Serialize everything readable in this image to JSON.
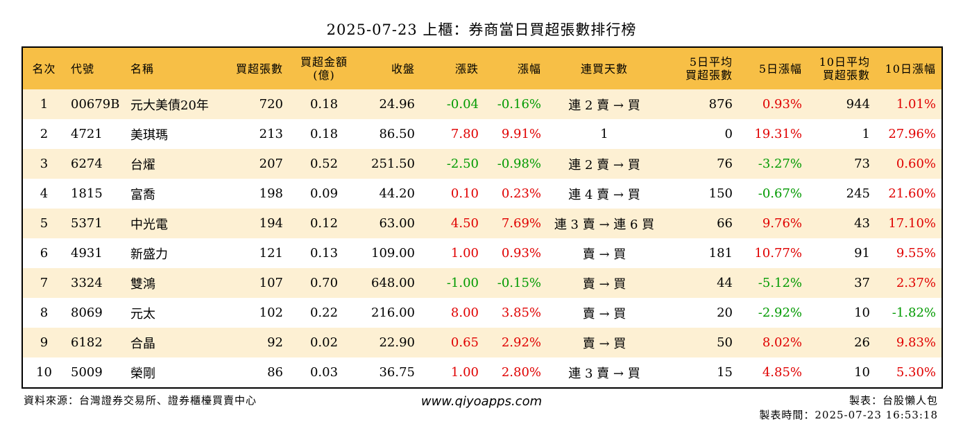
{
  "title": "2025-07-23 上櫃：券商當日買超張數排行榜",
  "colors": {
    "header_bg": "#f7bf46",
    "row_alt_bg": "#fdf0d3",
    "up": "#e00000",
    "down": "#009a00"
  },
  "headers": [
    "名次",
    "代號",
    "名稱",
    "買超張數",
    "買超金額\n(億)",
    "收盤",
    "漲跌",
    "漲幅",
    "連買天數",
    "5日平均\n買超張數",
    "5日漲幅",
    "10日平均\n買超張數",
    "10日漲幅"
  ],
  "rows": [
    {
      "rank": "1",
      "code": "00679B",
      "name": "元大美債20年",
      "buy": "720",
      "amount": "0.18",
      "close": "24.96",
      "change": "-0.04",
      "pct": "-0.16%",
      "days": "連 2 賣 → 買",
      "avg5": "876",
      "pct5": "0.93%",
      "avg10": "944",
      "pct10": "1.01%"
    },
    {
      "rank": "2",
      "code": "4721",
      "name": "美琪瑪",
      "buy": "213",
      "amount": "0.18",
      "close": "86.50",
      "change": "7.80",
      "pct": "9.91%",
      "days": "1",
      "avg5": "0",
      "pct5": "19.31%",
      "avg10": "1",
      "pct10": "27.96%"
    },
    {
      "rank": "3",
      "code": "6274",
      "name": "台燿",
      "buy": "207",
      "amount": "0.52",
      "close": "251.50",
      "change": "-2.50",
      "pct": "-0.98%",
      "days": "連 2 賣 → 買",
      "avg5": "76",
      "pct5": "-3.27%",
      "avg10": "73",
      "pct10": "0.60%"
    },
    {
      "rank": "4",
      "code": "1815",
      "name": "富喬",
      "buy": "198",
      "amount": "0.09",
      "close": "44.20",
      "change": "0.10",
      "pct": "0.23%",
      "days": "連 4 賣 → 買",
      "avg5": "150",
      "pct5": "-0.67%",
      "avg10": "245",
      "pct10": "21.60%"
    },
    {
      "rank": "5",
      "code": "5371",
      "name": "中光電",
      "buy": "194",
      "amount": "0.12",
      "close": "63.00",
      "change": "4.50",
      "pct": "7.69%",
      "days": "連 3 賣 → 連 6 買",
      "avg5": "66",
      "pct5": "9.76%",
      "avg10": "43",
      "pct10": "17.10%"
    },
    {
      "rank": "6",
      "code": "4931",
      "name": "新盛力",
      "buy": "121",
      "amount": "0.13",
      "close": "109.00",
      "change": "1.00",
      "pct": "0.93%",
      "days": "賣 → 買",
      "avg5": "181",
      "pct5": "10.77%",
      "avg10": "91",
      "pct10": "9.55%"
    },
    {
      "rank": "7",
      "code": "3324",
      "name": "雙鴻",
      "buy": "107",
      "amount": "0.70",
      "close": "648.00",
      "change": "-1.00",
      "pct": "-0.15%",
      "days": "賣 → 買",
      "avg5": "44",
      "pct5": "-5.12%",
      "avg10": "37",
      "pct10": "2.37%"
    },
    {
      "rank": "8",
      "code": "8069",
      "name": "元太",
      "buy": "102",
      "amount": "0.22",
      "close": "216.00",
      "change": "8.00",
      "pct": "3.85%",
      "days": "賣 → 買",
      "avg5": "20",
      "pct5": "-2.92%",
      "avg10": "10",
      "pct10": "-1.82%"
    },
    {
      "rank": "9",
      "code": "6182",
      "name": "合晶",
      "buy": "92",
      "amount": "0.02",
      "close": "22.90",
      "change": "0.65",
      "pct": "2.92%",
      "days": "賣 → 買",
      "avg5": "50",
      "pct5": "8.02%",
      "avg10": "26",
      "pct10": "9.83%"
    },
    {
      "rank": "10",
      "code": "5009",
      "name": "榮剛",
      "buy": "86",
      "amount": "0.03",
      "close": "36.75",
      "change": "1.00",
      "pct": "2.80%",
      "days": "連 3 賣 → 買",
      "avg5": "15",
      "pct5": "4.85%",
      "avg10": "10",
      "pct10": "5.30%"
    }
  ],
  "footer": {
    "source": "資料來源：台灣證券交易所、證券櫃檯買賣中心",
    "website": "www.qiyoapps.com",
    "author": "製表：台股懶人包",
    "made_time": "製表時間：2025-07-23 16:53:18"
  }
}
